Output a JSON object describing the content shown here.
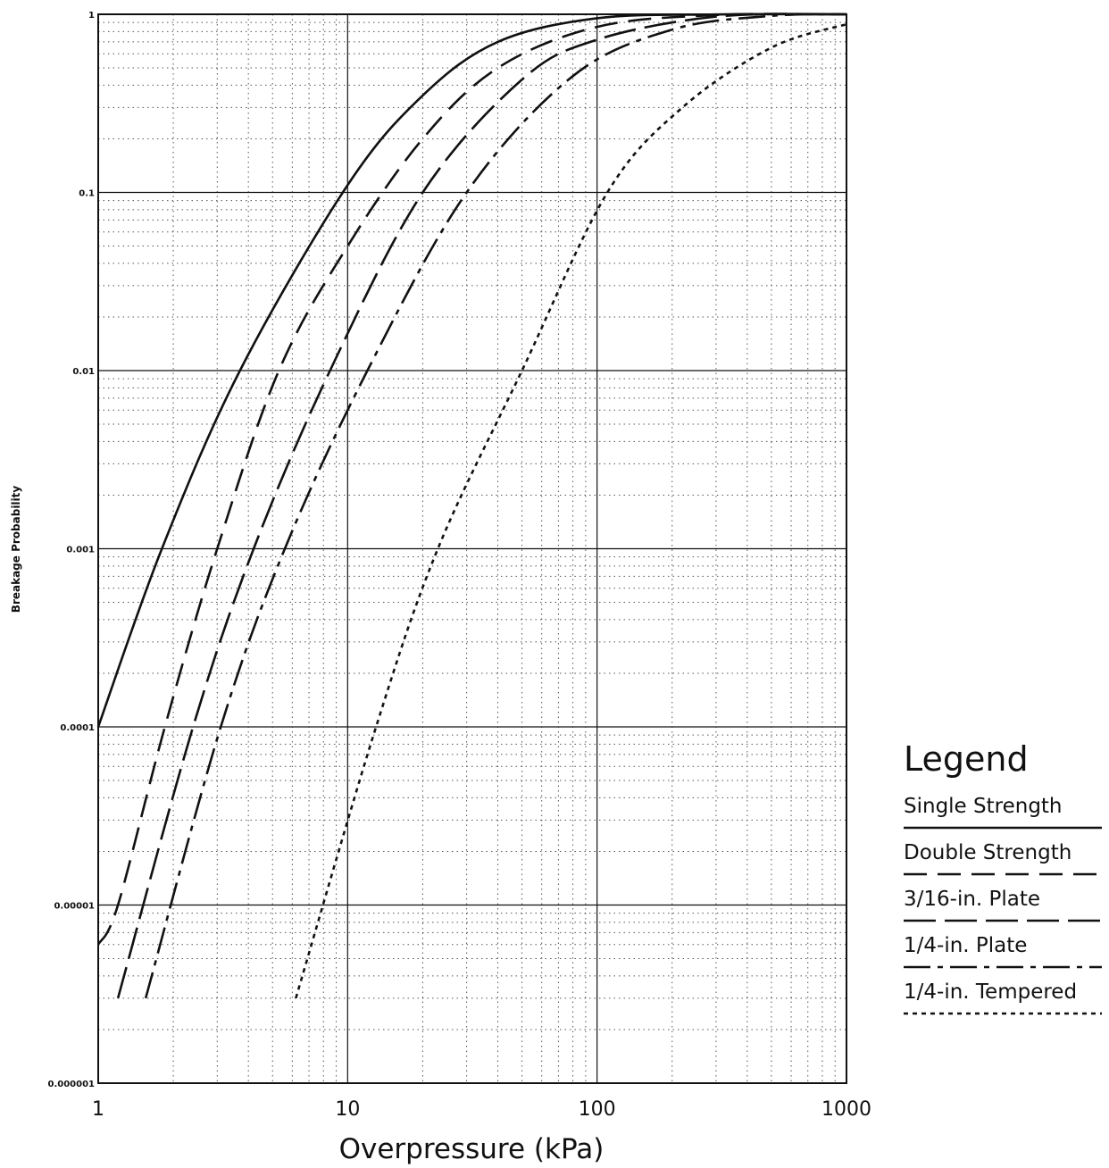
{
  "chart_data": {
    "type": "line",
    "title": "",
    "xlabel": "Overpressure (kPa)",
    "ylabel": "Breakage Probability",
    "x_scale": "log",
    "y_scale": "log",
    "xlim": [
      1,
      1000
    ],
    "ylim": [
      1e-06,
      1
    ],
    "x_ticks": [
      "1",
      "10",
      "100",
      "1000"
    ],
    "y_ticks": [
      "0.000001",
      "0.00001",
      "0.0001",
      "0.001",
      "0.01",
      "0.1",
      "1"
    ],
    "grid": true,
    "legend_position": "right",
    "legend_title": "Legend",
    "series": [
      {
        "name": "Single Strength",
        "dash": "solid",
        "x": [
          1,
          1.8,
          3.7,
          10,
          20,
          40,
          100,
          300,
          1000
        ],
        "y": [
          0.0001,
          0.001,
          0.01,
          0.11,
          0.35,
          0.7,
          0.95,
          0.998,
          1
        ]
      },
      {
        "name": "Double Strength",
        "dash": "long-dash",
        "x": [
          1,
          1.2,
          1.85,
          3,
          5.3,
          10,
          20,
          40,
          100,
          300,
          1000
        ],
        "y": [
          6e-06,
          1e-05,
          0.0001,
          0.001,
          0.01,
          0.05,
          0.2,
          0.5,
          0.85,
          0.99,
          1
        ]
      },
      {
        "name": "3/16-in. Plate",
        "dash": "dash",
        "x": [
          1.2,
          2.4,
          4.2,
          8.5,
          20,
          50,
          100,
          300,
          1000
        ],
        "y": [
          3e-06,
          0.0001,
          0.001,
          0.01,
          0.1,
          0.43,
          0.72,
          0.97,
          1
        ]
      },
      {
        "name": "1/4-in. Plate",
        "dash": "dash-dot",
        "x": [
          1.55,
          3.1,
          5.6,
          12,
          30,
          80,
          200,
          500,
          1000
        ],
        "y": [
          3e-06,
          0.0001,
          0.001,
          0.01,
          0.1,
          0.45,
          0.82,
          0.98,
          1
        ]
      },
      {
        "name": "1/4-in. Tempered",
        "dash": "dotted",
        "x": [
          6.2,
          13,
          23,
          50,
          110,
          220,
          500,
          1000
        ],
        "y": [
          3e-06,
          0.0001,
          0.001,
          0.01,
          0.1,
          0.3,
          0.65,
          0.88
        ]
      }
    ]
  }
}
